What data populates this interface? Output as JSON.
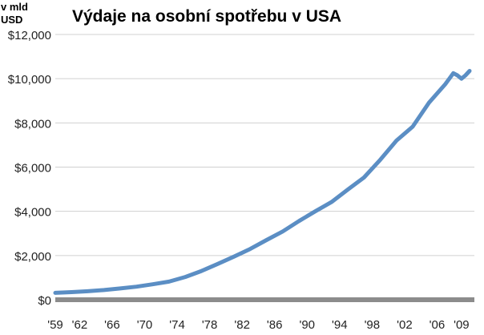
{
  "chart_data": {
    "type": "line",
    "title": "Výdaje na osobní spotřebu  v USA",
    "unit_label": [
      "v mld",
      "USD"
    ],
    "xlabel": "",
    "ylabel": "",
    "xlim": [
      1959,
      2010
    ],
    "ylim": [
      0,
      12000
    ],
    "grid": true,
    "legend": "none",
    "y_ticks": [
      {
        "value": 0,
        "label": "$0"
      },
      {
        "value": 2000,
        "label": "$2,000"
      },
      {
        "value": 4000,
        "label": "$4,000"
      },
      {
        "value": 6000,
        "label": "$6,000"
      },
      {
        "value": 8000,
        "label": "$8,000"
      },
      {
        "value": 10000,
        "label": "$10,000"
      },
      {
        "value": 12000,
        "label": "$12,000"
      }
    ],
    "x_ticks": [
      {
        "value": 1959,
        "label": "'59"
      },
      {
        "value": 1962,
        "label": "'62"
      },
      {
        "value": 1966,
        "label": "'66"
      },
      {
        "value": 1970,
        "label": "'70"
      },
      {
        "value": 1974,
        "label": "'74"
      },
      {
        "value": 1978,
        "label": "'78"
      },
      {
        "value": 1982,
        "label": "'82"
      },
      {
        "value": 1986,
        "label": "'86"
      },
      {
        "value": 1990,
        "label": "'90"
      },
      {
        "value": 1994,
        "label": "'94"
      },
      {
        "value": 1998,
        "label": "'98"
      },
      {
        "value": 2002,
        "label": "'02"
      },
      {
        "value": 2006,
        "label": "'06"
      },
      {
        "value": 2009,
        "label": "'09"
      }
    ],
    "series": [
      {
        "color": "#5b8ec4",
        "x": [
          1959,
          1961,
          1963,
          1965,
          1967,
          1969,
          1971,
          1973,
          1975,
          1977,
          1979,
          1981,
          1983,
          1985,
          1987,
          1989,
          1991,
          1993,
          1995,
          1997,
          1999,
          2001,
          2003,
          2005,
          2007,
          2007.5,
          2008,
          2008.5,
          2009,
          2009.5,
          2010
        ],
        "y": [
          310,
          345,
          385,
          440,
          510,
          590,
          700,
          820,
          1030,
          1300,
          1620,
          1950,
          2300,
          2700,
          3090,
          3560,
          4000,
          4420,
          4980,
          5530,
          6330,
          7200,
          7830,
          8910,
          9750,
          10000,
          10250,
          10150,
          10000,
          10150,
          10350
        ]
      }
    ],
    "zero_axis_color": "#8c8c8c",
    "grid_color": "#d0d0d0"
  }
}
